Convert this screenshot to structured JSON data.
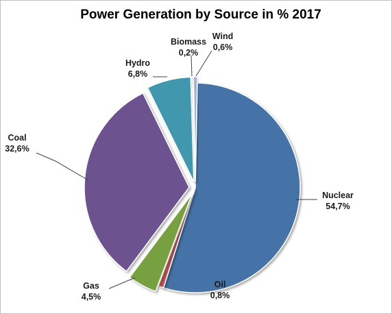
{
  "chart_data": {
    "type": "pie",
    "title": "Power Generation by Source in % 2017",
    "slices": [
      {
        "name": "Nuclear",
        "value": 54.7,
        "label": "54,7%",
        "color": "#4573A7",
        "exploded": false
      },
      {
        "name": "Oil",
        "value": 0.8,
        "label": "0,8%",
        "color": "#C0504D",
        "exploded": false
      },
      {
        "name": "Gas",
        "value": 4.5,
        "label": "4,5%",
        "color": "#77A03F",
        "exploded": true
      },
      {
        "name": "Coal",
        "value": 32.6,
        "label": "32,6%",
        "color": "#6C5390",
        "exploded": true
      },
      {
        "name": "Hydro",
        "value": 6.8,
        "label": "6,8%",
        "color": "#4197AE",
        "exploded": true
      },
      {
        "name": "Biomass",
        "value": 0.2,
        "label": "0,2%",
        "color": "#E8923A",
        "exploded": true
      },
      {
        "name": "Wind",
        "value": 0.6,
        "label": "0,6%",
        "color": "#9BB3DB",
        "exploded": true
      }
    ],
    "legend": "none",
    "data_labels": "outside-with-leader-lines"
  }
}
